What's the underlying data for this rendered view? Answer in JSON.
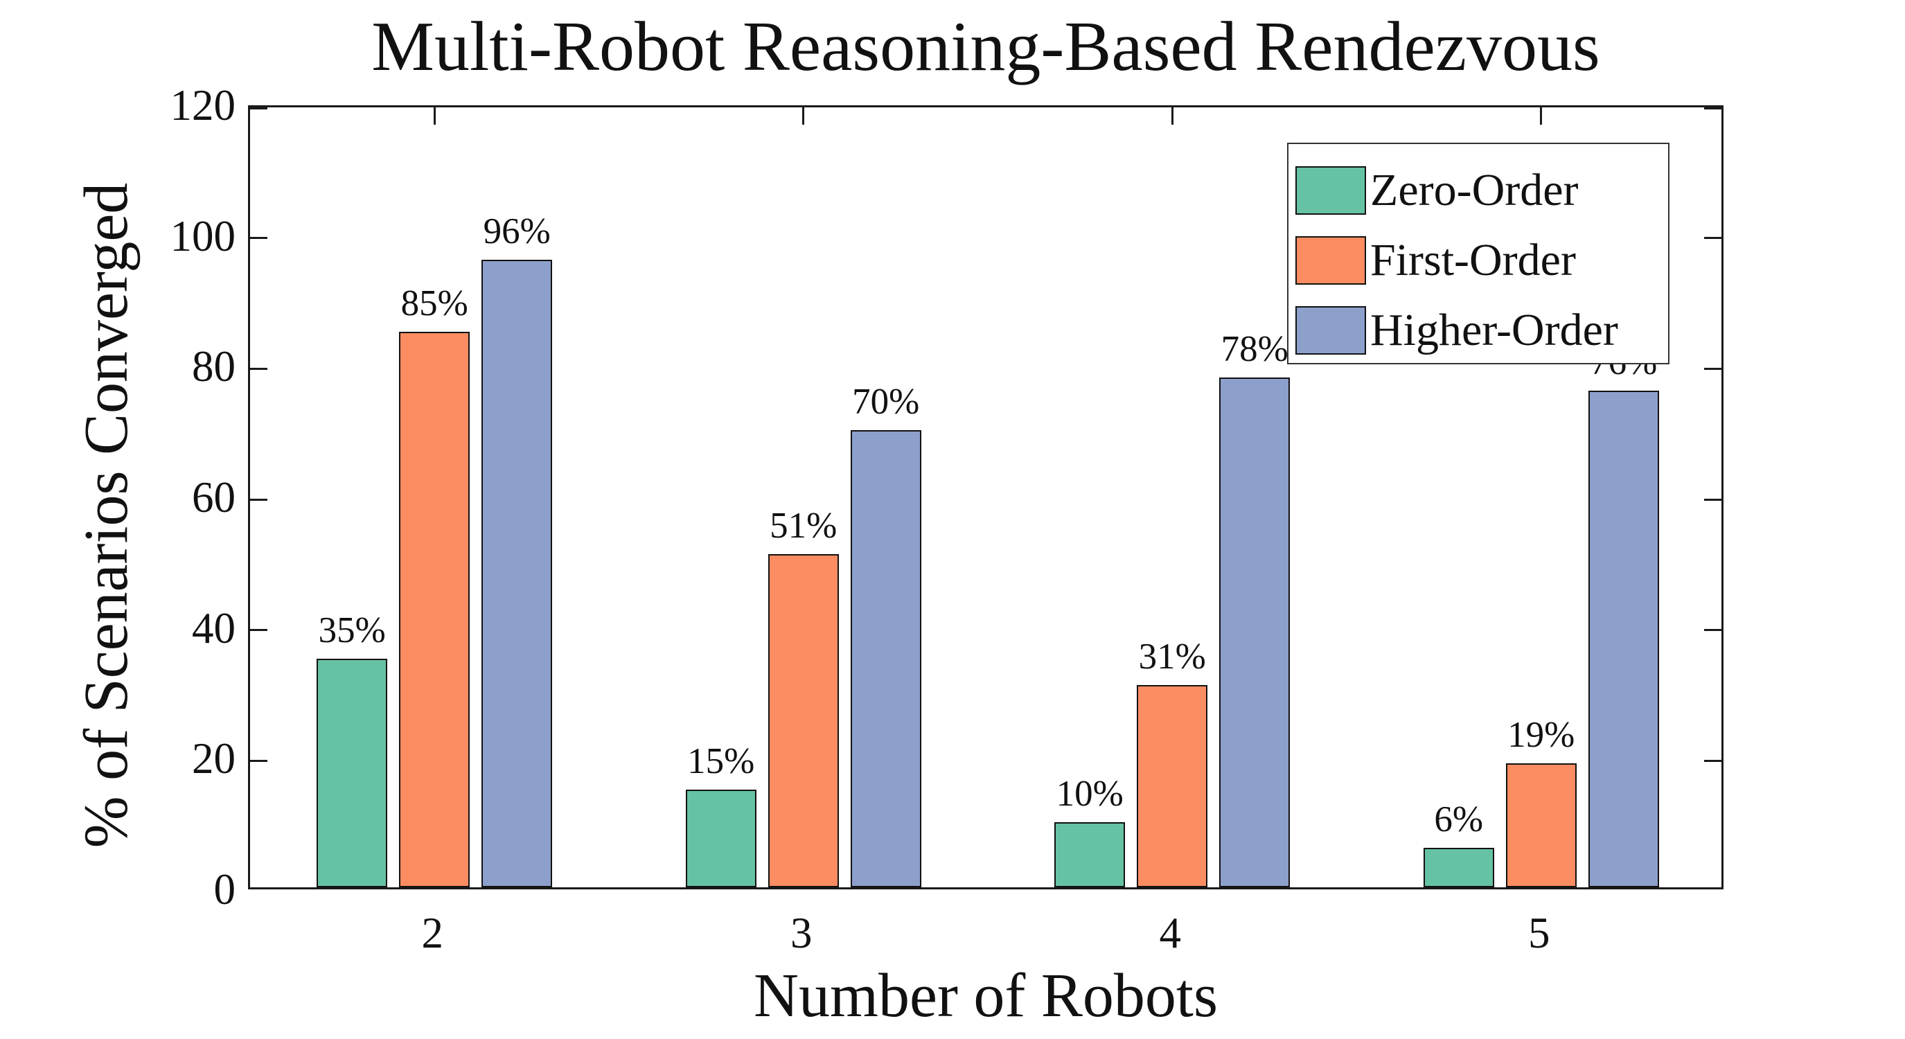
{
  "chart_data": {
    "type": "bar",
    "title": "Multi-Robot Reasoning-Based Rendezvous",
    "xlabel": "Number of Robots",
    "ylabel": "% of Scenarios Converged",
    "categories": [
      "2",
      "3",
      "4",
      "5"
    ],
    "series": [
      {
        "name": "Zero-Order",
        "color": "#66C2A5",
        "values": [
          35,
          15,
          10,
          6
        ],
        "labels": [
          "35%",
          "15%",
          "10%",
          "6%"
        ]
      },
      {
        "name": "First-Order",
        "color": "#FC8D62",
        "values": [
          85,
          51,
          31,
          19
        ],
        "labels": [
          "85%",
          "51%",
          "31%",
          "19%"
        ]
      },
      {
        "name": "Higher-Order",
        "color": "#8DA0CB",
        "values": [
          96,
          70,
          78,
          76
        ],
        "labels": [
          "96%",
          "70%",
          "78%",
          "76%"
        ]
      }
    ],
    "ylim": [
      0,
      120
    ],
    "yticks": [
      "0",
      "20",
      "40",
      "60",
      "80",
      "100",
      "120"
    ],
    "value_label_suffix": "%",
    "legend_position": "top-right",
    "grid": false,
    "axis_color": "#1a1a1a",
    "background_color": "#ffffff"
  }
}
